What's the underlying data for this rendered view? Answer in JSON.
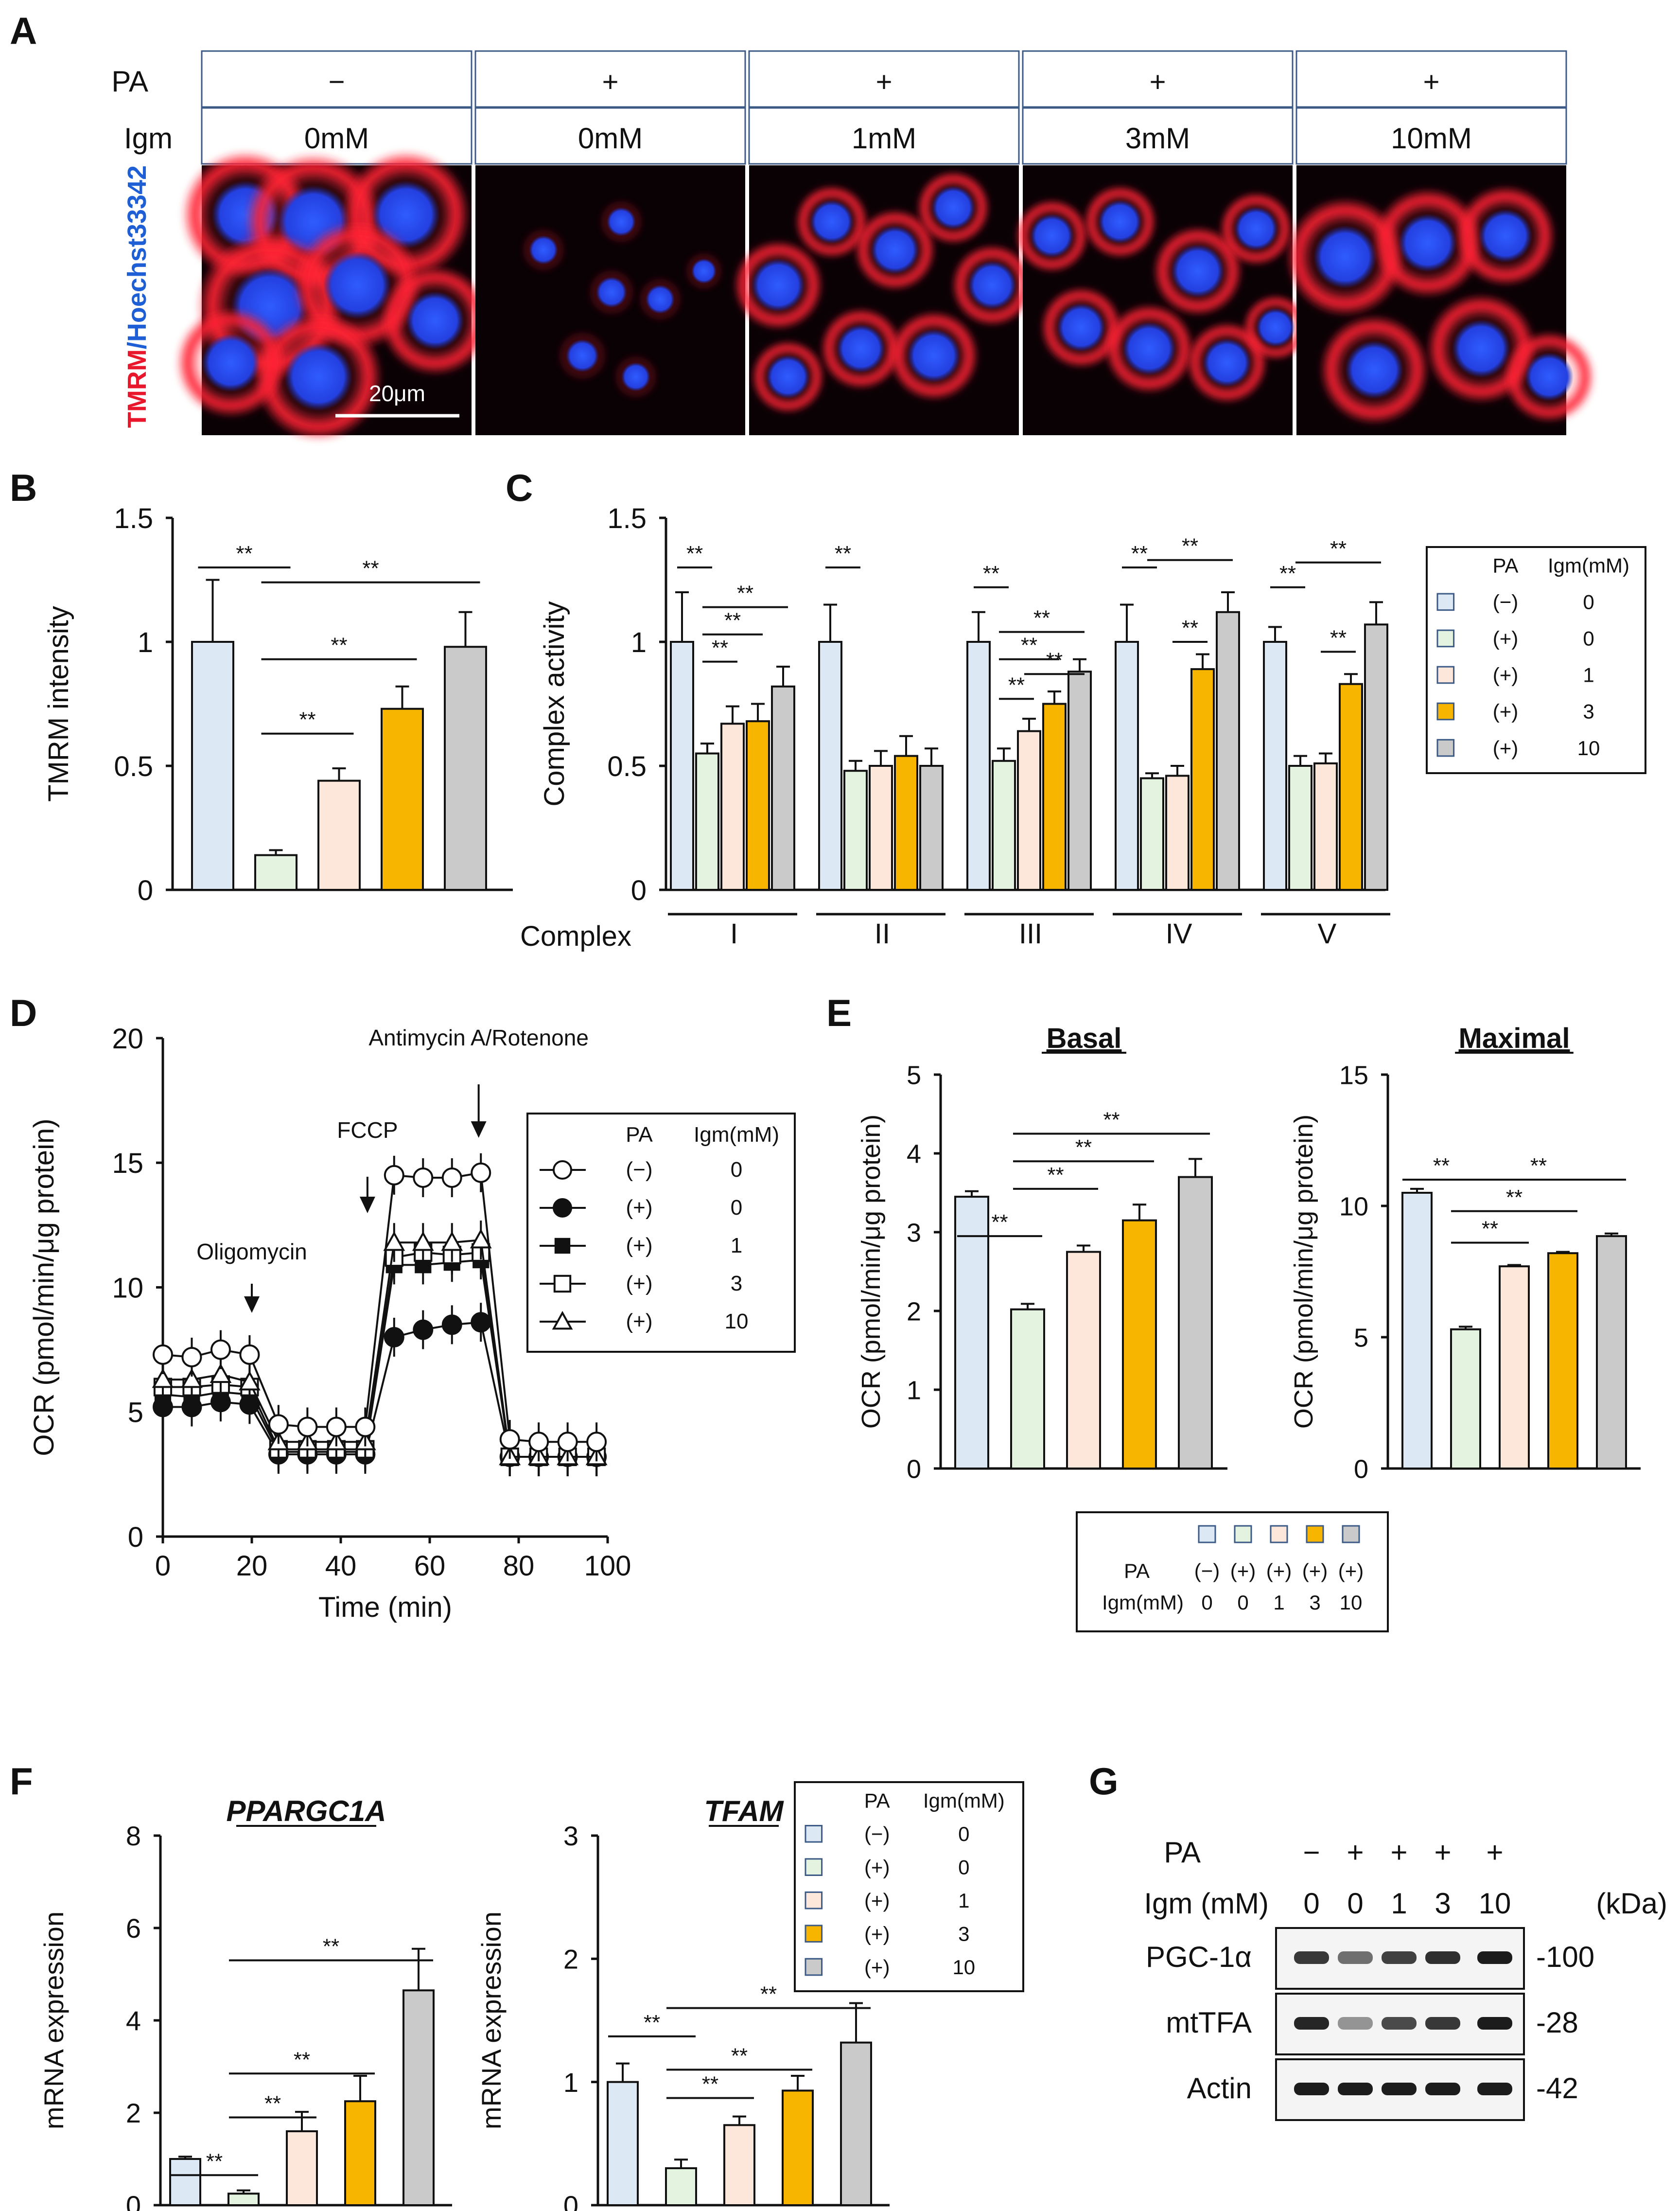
{
  "colors": {
    "light_blue": "#dce9f5",
    "light_green": "#e4f3df",
    "peach": "#fde7db",
    "orange": "#f7b500",
    "gray": "#cacaca",
    "tmrm_red": "#e8172b",
    "hoechst_blue": "#1f5fd6"
  },
  "panels": {
    "A": "A",
    "B": "B",
    "C": "C",
    "D": "D",
    "E": "E",
    "F": "F",
    "G": "G"
  },
  "panelA": {
    "row_labels": {
      "pa": "PA",
      "igm": "Igm"
    },
    "pa": [
      "−",
      "+",
      "+",
      "+",
      "+"
    ],
    "igm": [
      "0mM",
      "0mM",
      "1mM",
      "3mM",
      "10mM"
    ],
    "side_label_red": "TMRM",
    "side_label_blue": "/Hoechst33342",
    "scale_bar": "20μm"
  },
  "legend": {
    "header_pa": "PA",
    "header_igm": "Igm(mM)",
    "rows": [
      {
        "pa": "(−)",
        "igm": "0",
        "symbol": "circle-open"
      },
      {
        "pa": "(+)",
        "igm": "0",
        "symbol": "circle-filled"
      },
      {
        "pa": "(+)",
        "igm": "1",
        "symbol": "square-filled"
      },
      {
        "pa": "(+)",
        "igm": "3",
        "symbol": "square-open"
      },
      {
        "pa": "(+)",
        "igm": "10",
        "symbol": "triangle-open"
      }
    ]
  },
  "legendE": {
    "pa_label": "PA",
    "igm_label": "Igm(mM)",
    "pa": [
      "(−)",
      "(+)",
      "(+)",
      "(+)",
      "(+)"
    ],
    "igm": [
      "0",
      "0",
      "1",
      "3",
      "10"
    ]
  },
  "chart_data": [
    {
      "id": "B",
      "type": "bar",
      "ylabel": "TMRM intensity",
      "ylim": [
        0,
        1.5
      ],
      "yticks": [
        "0",
        "0.5",
        "1",
        "1.5"
      ],
      "values": [
        1.0,
        0.14,
        0.44,
        0.73,
        0.98
      ],
      "errors": [
        0.25,
        0.02,
        0.05,
        0.09,
        0.14
      ],
      "significance": "**"
    },
    {
      "id": "C",
      "type": "bar",
      "ylabel": "Complex activity",
      "xlabel": "Complex",
      "ylim": [
        0,
        1.5
      ],
      "yticks": [
        "0",
        "0.5",
        "1",
        "1.5"
      ],
      "categories": [
        "I",
        "II",
        "III",
        "IV",
        "V"
      ],
      "values": [
        [
          1.0,
          0.55,
          0.67,
          0.68,
          0.82
        ],
        [
          1.0,
          0.48,
          0.5,
          0.54,
          0.5
        ],
        [
          1.0,
          0.52,
          0.64,
          0.75,
          0.88
        ],
        [
          1.0,
          0.45,
          0.46,
          0.89,
          1.12
        ],
        [
          1.0,
          0.5,
          0.51,
          0.83,
          1.07
        ]
      ],
      "errors": [
        [
          0.2,
          0.04,
          0.07,
          0.07,
          0.08
        ],
        [
          0.15,
          0.04,
          0.06,
          0.08,
          0.07
        ],
        [
          0.12,
          0.05,
          0.05,
          0.05,
          0.05
        ],
        [
          0.15,
          0.02,
          0.04,
          0.06,
          0.08
        ],
        [
          0.06,
          0.04,
          0.04,
          0.04,
          0.09
        ]
      ],
      "significance": "**"
    },
    {
      "id": "D",
      "type": "line",
      "xlabel": "Time (min)",
      "ylabel": "OCR (pmol/min/μg protein)",
      "xlim": [
        0,
        100
      ],
      "ylim": [
        0,
        20
      ],
      "xticks": [
        "0",
        "20",
        "40",
        "60",
        "80",
        "100"
      ],
      "yticks": [
        "0",
        "5",
        "10",
        "15",
        "20"
      ],
      "x": [
        0,
        6.5,
        13,
        19.5,
        26,
        32.5,
        39,
        45.5,
        52,
        58.5,
        65,
        71.5,
        78,
        84.5,
        91,
        97.5
      ],
      "series": [
        {
          "name": "(−) 0",
          "values": [
            7.3,
            7.2,
            7.5,
            7.3,
            4.5,
            4.4,
            4.4,
            4.4,
            14.5,
            14.4,
            14.4,
            14.6,
            3.9,
            3.8,
            3.8,
            3.8
          ]
        },
        {
          "name": "(+) 0",
          "values": [
            5.2,
            5.2,
            5.4,
            5.3,
            3.3,
            3.3,
            3.3,
            3.3,
            8.0,
            8.3,
            8.5,
            8.6,
            3.2,
            3.2,
            3.2,
            3.2
          ]
        },
        {
          "name": "(+) 1",
          "values": [
            5.7,
            5.6,
            5.8,
            5.7,
            3.4,
            3.4,
            3.4,
            3.4,
            10.9,
            10.9,
            11.0,
            11.1,
            3.2,
            3.2,
            3.2,
            3.2
          ]
        },
        {
          "name": "(+) 3",
          "values": [
            6.0,
            6.0,
            6.1,
            6.0,
            3.5,
            3.5,
            3.5,
            3.5,
            11.2,
            11.4,
            11.3,
            11.4,
            3.2,
            3.2,
            3.2,
            3.2
          ]
        },
        {
          "name": "(+) 10",
          "values": [
            6.3,
            6.3,
            6.5,
            6.2,
            3.8,
            3.8,
            3.8,
            3.8,
            11.8,
            11.8,
            11.8,
            11.9,
            3.2,
            3.2,
            3.2,
            3.2
          ]
        }
      ],
      "annotations": [
        {
          "text": "Oligomycin",
          "x": 20
        },
        {
          "text": "FCCP",
          "x": 46
        },
        {
          "text": "Antimycin A/Rotenone",
          "x": 71
        }
      ]
    },
    {
      "id": "E-basal",
      "type": "bar",
      "title": "Basal",
      "ylabel": "OCR (pmol/min/μg protein)",
      "ylim": [
        0,
        5
      ],
      "yticks": [
        "0",
        "1",
        "2",
        "3",
        "4",
        "5"
      ],
      "values": [
        3.45,
        2.02,
        2.75,
        3.15,
        3.7
      ],
      "errors": [
        0.07,
        0.07,
        0.08,
        0.2,
        0.23
      ],
      "significance": "**"
    },
    {
      "id": "E-maximal",
      "type": "bar",
      "title": "Maximal",
      "ylabel": "OCR (pmol/min/μg protein)",
      "ylim": [
        0,
        15
      ],
      "yticks": [
        "0",
        "5",
        "10",
        "15"
      ],
      "values": [
        10.5,
        5.3,
        7.7,
        8.2,
        8.85
      ],
      "errors": [
        0.15,
        0.1,
        0.05,
        0.05,
        0.1
      ],
      "significance": "**"
    },
    {
      "id": "F-PPARGC1A",
      "type": "bar",
      "title": "PPARGC1A",
      "ylabel": "mRNA expression",
      "ylim": [
        0,
        8
      ],
      "yticks": [
        "0",
        "2",
        "4",
        "6",
        "8"
      ],
      "values": [
        1.0,
        0.25,
        1.6,
        2.25,
        4.65
      ],
      "errors": [
        0.05,
        0.07,
        0.42,
        0.55,
        0.9
      ],
      "significance": "**"
    },
    {
      "id": "F-TFAM",
      "type": "bar",
      "title": "TFAM",
      "ylabel": "mRNA expression",
      "ylim": [
        0,
        3
      ],
      "yticks": [
        "0",
        "1",
        "2",
        "3"
      ],
      "values": [
        1.0,
        0.3,
        0.65,
        0.93,
        1.32
      ],
      "errors": [
        0.15,
        0.07,
        0.07,
        0.12,
        0.32
      ],
      "significance": "**"
    }
  ],
  "panelG": {
    "pa_label": "PA",
    "igm_label": "Igm (mM)",
    "pa": [
      "−",
      "+",
      "+",
      "+",
      "+"
    ],
    "igm": [
      "0",
      "0",
      "1",
      "3",
      "10"
    ],
    "kda_label": "(kDa)",
    "blots": [
      {
        "name": "PGC-1α",
        "kda": "-100",
        "intensity": [
          0.85,
          0.55,
          0.8,
          0.9,
          1.0
        ]
      },
      {
        "name": "mtTFA",
        "kda": "-28",
        "intensity": [
          0.95,
          0.35,
          0.75,
          0.85,
          1.0
        ]
      },
      {
        "name": "Actin",
        "kda": "-42",
        "intensity": [
          1.0,
          1.0,
          1.0,
          1.0,
          1.0
        ]
      }
    ]
  }
}
